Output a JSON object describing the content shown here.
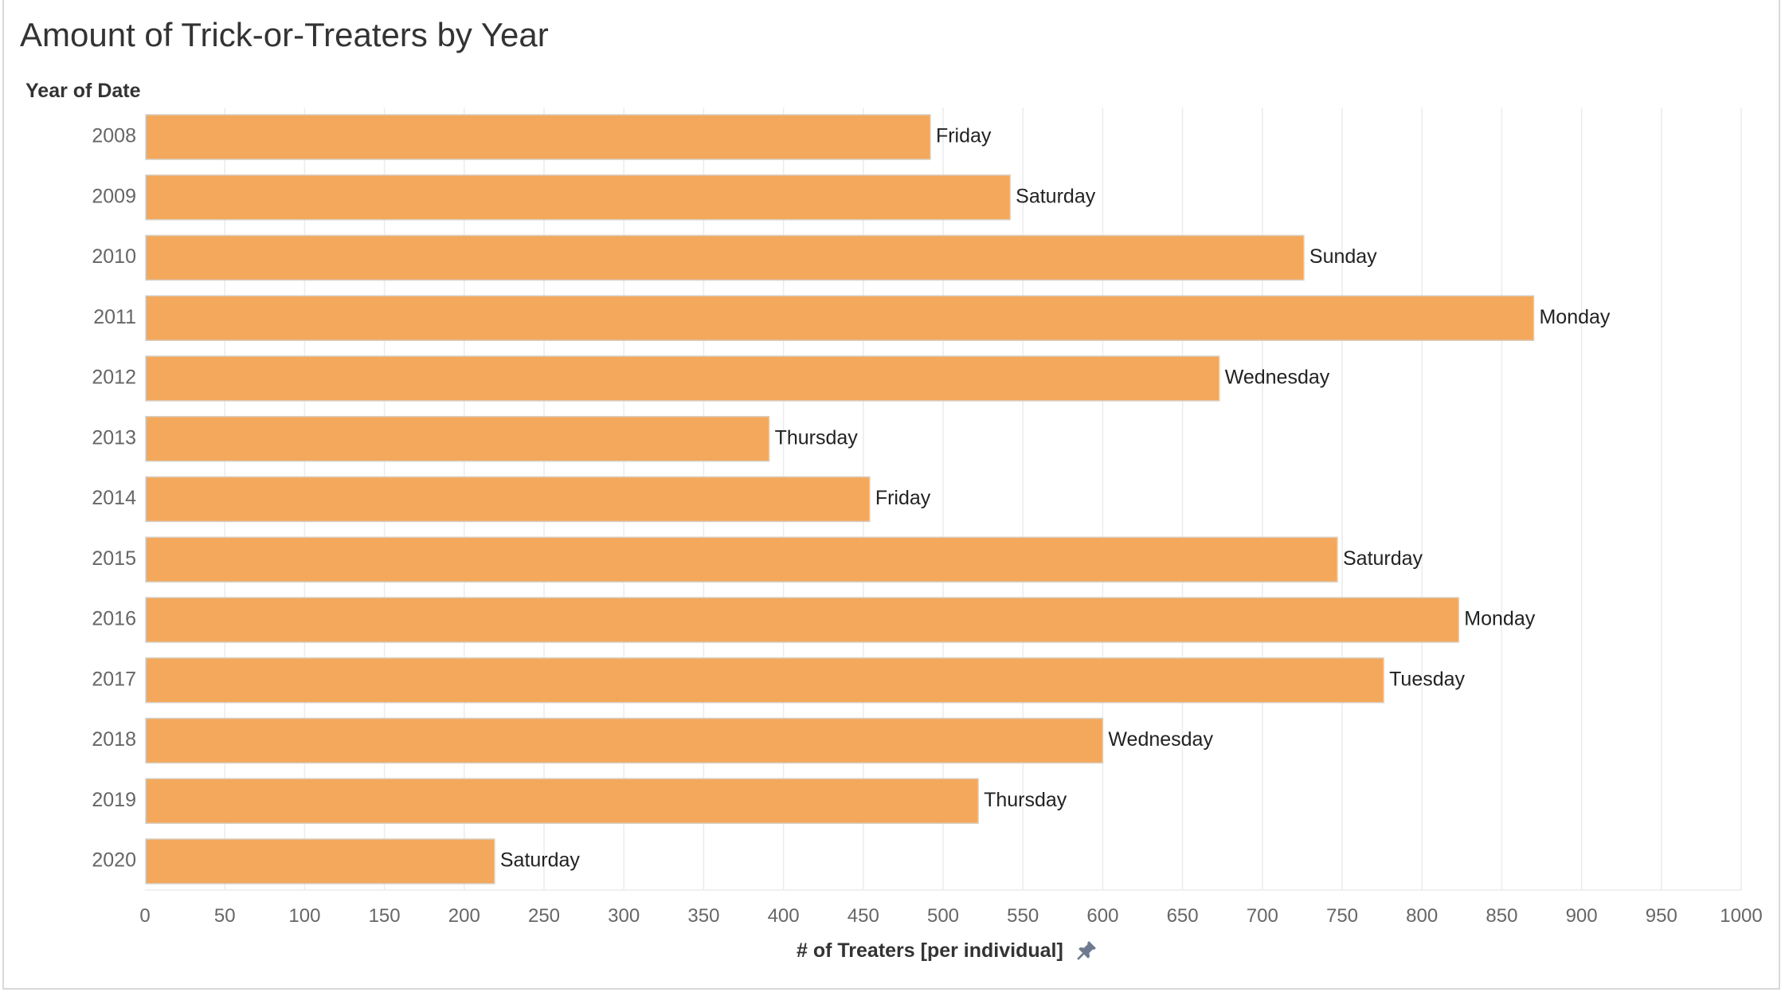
{
  "title": "Amount of Trick-or-Treaters by Year",
  "y_axis_header": "Year of Date",
  "x_axis_title": "# of Treaters [per individual]",
  "pin_icon": "pin-icon",
  "colors": {
    "bar": "#F3A85C",
    "bar_border": "#d8cfc4",
    "grid": "#ececec",
    "tick_text": "#666666",
    "label_text": "#222222"
  },
  "chart_data": {
    "type": "bar",
    "orientation": "horizontal",
    "title": "Amount of Trick-or-Treaters by Year",
    "xlabel": "# of Treaters [per individual]",
    "ylabel": "Year of Date",
    "xlim": [
      0,
      1000
    ],
    "x_ticks": [
      0,
      50,
      100,
      150,
      200,
      250,
      300,
      350,
      400,
      450,
      500,
      550,
      600,
      650,
      700,
      750,
      800,
      850,
      900,
      950,
      1000
    ],
    "grid": true,
    "categories": [
      "2008",
      "2009",
      "2010",
      "2011",
      "2012",
      "2013",
      "2014",
      "2015",
      "2016",
      "2017",
      "2018",
      "2019",
      "2020"
    ],
    "values": [
      492,
      542,
      726,
      870,
      673,
      391,
      454,
      747,
      823,
      776,
      600,
      522,
      219
    ],
    "data_labels": [
      "Friday",
      "Saturday",
      "Sunday",
      "Monday",
      "Wednesday",
      "Thursday",
      "Friday",
      "Saturday",
      "Monday",
      "Tuesday",
      "Wednesday",
      "Thursday",
      "Saturday"
    ]
  }
}
